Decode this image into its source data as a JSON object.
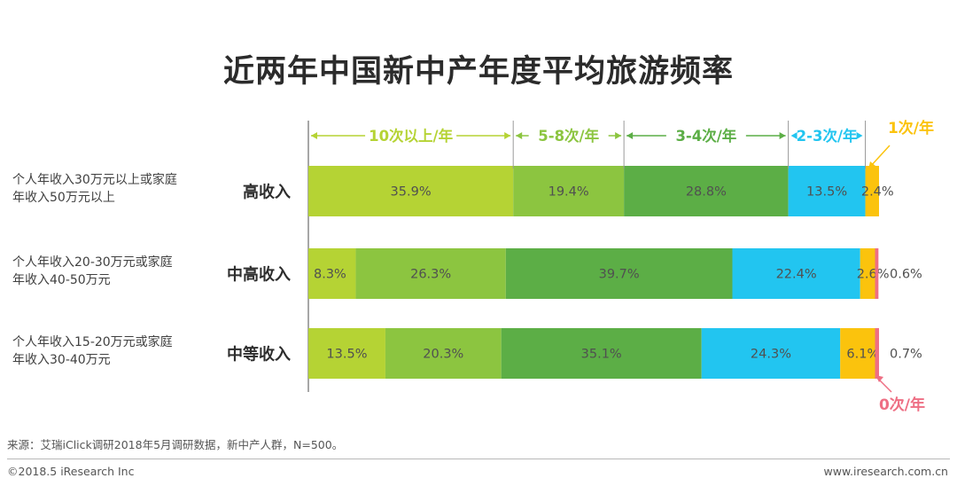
{
  "chart_data": {
    "type": "bar",
    "orientation": "horizontal",
    "stacked": true,
    "title": "近两年中国新中产年度平均旅游频率",
    "categories": [
      {
        "label": "高收入",
        "description": [
          "个人年收入30万元以上或家庭",
          "年收入50万元以上"
        ]
      },
      {
        "label": "中高收入",
        "description": [
          "个人年收入20-30万元或家庭",
          "年收入40-50万元"
        ]
      },
      {
        "label": "中等收入",
        "description": [
          "个人年收入15-20万元或家庭",
          "年收入30-40万元"
        ]
      }
    ],
    "series": [
      {
        "name": "10次以上/年",
        "color": "#b5d334",
        "values": [
          35.9,
          8.3,
          13.5
        ],
        "labels": [
          "35.9%",
          "8.3%",
          "13.5%"
        ]
      },
      {
        "name": "5-8次/年",
        "color": "#8cc540",
        "values": [
          19.4,
          26.3,
          20.3
        ],
        "labels": [
          "19.4%",
          "26.3%",
          "20.3%"
        ]
      },
      {
        "name": "3-4次/年",
        "color": "#5cae46",
        "values": [
          28.8,
          39.7,
          35.1
        ],
        "labels": [
          "28.8%",
          "39.7%",
          "35.1%"
        ]
      },
      {
        "name": "2-3次/年",
        "color": "#22c5f0",
        "values": [
          13.5,
          22.4,
          24.3
        ],
        "labels": [
          "13.5%",
          "22.4%",
          "24.3%"
        ]
      },
      {
        "name": "1次/年",
        "color": "#fbc30d",
        "values": [
          2.4,
          2.6,
          6.1
        ],
        "labels": [
          "2.4%",
          "2.6%",
          "6.1%"
        ]
      },
      {
        "name": "0次/年",
        "color": "#ee6f84",
        "values": [
          0,
          0.6,
          0.7
        ],
        "labels": [
          "",
          "0.6%",
          "0.7%"
        ]
      }
    ],
    "xlim": [
      0,
      100
    ]
  },
  "footer": {
    "source": "来源：艾瑞iClick调研2018年5月调研数据，新中产人群，N=500。",
    "copyright": "©2018.5 iResearch Inc",
    "website": "www.iresearch.com.cn"
  }
}
